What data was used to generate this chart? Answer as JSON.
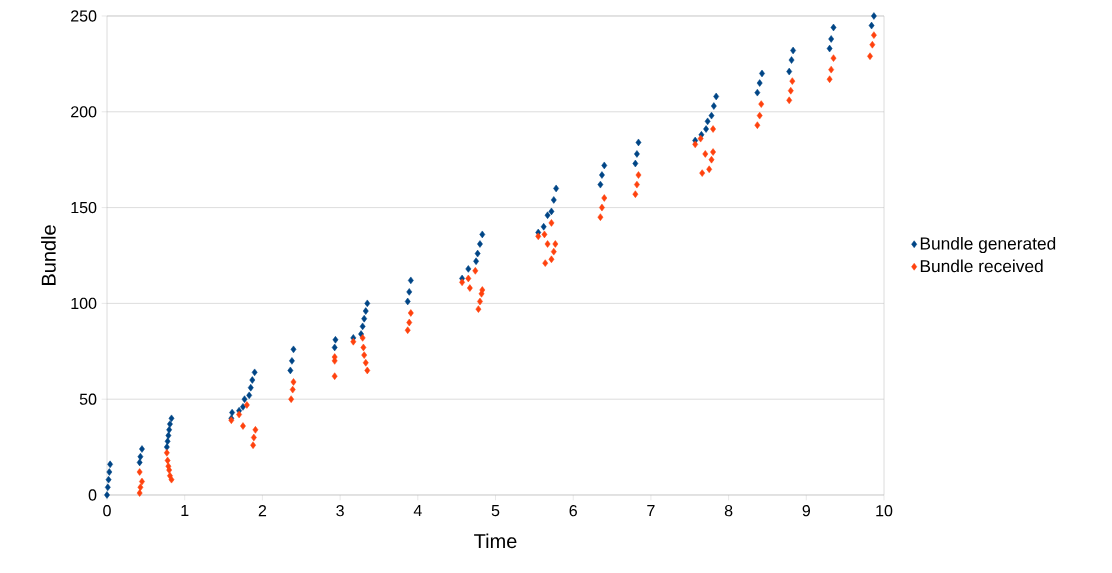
{
  "chart_data": {
    "type": "scatter",
    "xlabel": "Time",
    "ylabel": "Bundle",
    "xlim": [
      0,
      10
    ],
    "xticks": [
      0,
      1,
      2,
      3,
      4,
      5,
      6,
      7,
      8,
      9,
      10
    ],
    "ylim": [
      0,
      250
    ],
    "yticks": [
      0,
      50,
      100,
      150,
      200,
      250
    ],
    "grid": "y",
    "legend": "right",
    "marker": "diamond",
    "series": [
      {
        "name": "Bundle generated",
        "color": "#004586",
        "x": [
          0,
          0.01,
          0.02,
          0.03,
          0.04,
          0.42,
          0.43,
          0.45,
          0.77,
          0.78,
          0.79,
          0.8,
          0.81,
          0.83,
          1.6,
          1.61,
          1.7,
          1.75,
          1.77,
          1.83,
          1.85,
          1.87,
          1.9,
          2.36,
          2.38,
          2.4,
          2.93,
          2.94,
          3.17,
          3.27,
          3.29,
          3.31,
          3.33,
          3.35,
          3.87,
          3.89,
          3.91,
          4.57,
          4.65,
          4.75,
          4.77,
          4.8,
          4.83,
          5.55,
          5.62,
          5.67,
          5.72,
          5.75,
          5.78,
          6.35,
          6.37,
          6.4,
          6.8,
          6.82,
          6.84,
          7.57,
          7.65,
          7.71,
          7.73,
          7.78,
          7.81,
          7.84,
          8.37,
          8.4,
          8.43,
          8.78,
          8.81,
          8.83,
          9.3,
          9.32,
          9.35,
          9.84,
          9.87
        ],
        "values": [
          0,
          4,
          8,
          12,
          16,
          17,
          20,
          24,
          25,
          28,
          31,
          34,
          37,
          40,
          40,
          43,
          44,
          46,
          50,
          52,
          56,
          60,
          64,
          65,
          70,
          76,
          77,
          81,
          82,
          84,
          88,
          92,
          96,
          100,
          101,
          106,
          112,
          113,
          118,
          122,
          126,
          131,
          136,
          137,
          140,
          146,
          148,
          154,
          160,
          162,
          167,
          172,
          173,
          178,
          184,
          185,
          188,
          191,
          195,
          198,
          203,
          208,
          210,
          215,
          220,
          221,
          227,
          232,
          233,
          238,
          244,
          245,
          250
        ]
      },
      {
        "name": "Bundle received",
        "color": "#ff420e",
        "x": [
          0.42,
          0.43,
          0.45,
          0.42,
          0.77,
          0.78,
          0.79,
          0.8,
          0.81,
          0.83,
          1.6,
          1.7,
          1.75,
          1.8,
          1.88,
          1.89,
          1.91,
          2.37,
          2.39,
          2.4,
          2.93,
          2.93,
          2.93,
          3.17,
          3.29,
          3.3,
          3.31,
          3.33,
          3.35,
          3.87,
          3.89,
          3.91,
          4.57,
          4.65,
          4.67,
          4.74,
          4.78,
          4.8,
          4.82,
          4.83,
          5.55,
          5.63,
          5.64,
          5.67,
          5.72,
          5.72,
          5.75,
          5.77,
          6.35,
          6.37,
          6.4,
          6.8,
          6.82,
          6.84,
          7.57,
          7.64,
          7.66,
          7.7,
          7.75,
          7.78,
          7.8,
          7.8,
          8.37,
          8.4,
          8.42,
          8.78,
          8.8,
          8.82,
          9.3,
          9.32,
          9.35,
          9.82,
          9.85,
          9.87
        ],
        "values": [
          1,
          4,
          7,
          12,
          22,
          18,
          15,
          13,
          10,
          8,
          39,
          42,
          36,
          47,
          26,
          30,
          34,
          50,
          55,
          59,
          62,
          70,
          72,
          80,
          82,
          77,
          73,
          69,
          65,
          86,
          90,
          95,
          111,
          113,
          108,
          117,
          97,
          101,
          105,
          107,
          135,
          136,
          121,
          131,
          142,
          123,
          127,
          131,
          145,
          150,
          155,
          157,
          162,
          167,
          183,
          186,
          168,
          178,
          170,
          175,
          179,
          191,
          193,
          198,
          204,
          206,
          211,
          216,
          217,
          222,
          228,
          229,
          235,
          240
        ]
      }
    ]
  }
}
